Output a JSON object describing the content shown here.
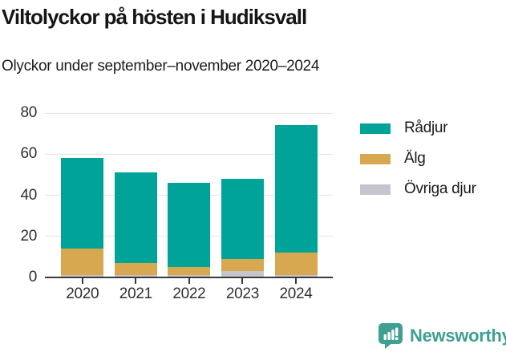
{
  "header": {
    "title": "Viltolyckor på hösten i Hudiksvall",
    "subtitle": "Olyckor under september–november 2020–2024"
  },
  "chart_data": {
    "type": "bar",
    "stacked": true,
    "title": "Viltolyckor på hösten i Hudiksvall",
    "subtitle": "Olyckor under september–november 2020–2024",
    "categories": [
      "2020",
      "2021",
      "2022",
      "2023",
      "2024"
    ],
    "series": [
      {
        "name": "Rådjur",
        "color": "#00a398",
        "values": [
          44,
          44,
          41,
          39,
          62
        ]
      },
      {
        "name": "Älg",
        "color": "#d8a850",
        "values": [
          13,
          6,
          4,
          6,
          11
        ]
      },
      {
        "name": "Övriga djur",
        "color": "#c6c5ce",
        "values": [
          1,
          1,
          1,
          3,
          1
        ]
      }
    ],
    "stack_order": "reverse-of-legend (Övriga djur bottom, Älg middle, Rådjur top)",
    "totals": [
      58,
      51,
      46,
      48,
      74
    ],
    "xlabel": "",
    "ylabel": "",
    "ylim": [
      0,
      80
    ],
    "yticks": [
      0,
      20,
      40,
      60,
      80
    ],
    "grid": true,
    "legend_position": "right",
    "axis_color": "#3b3b3b",
    "grid_color": "#e4e4e4",
    "tick_label_color": "#303030"
  },
  "footer": {
    "brand": "Newsworthy",
    "brand_color": "#3f9f92"
  }
}
